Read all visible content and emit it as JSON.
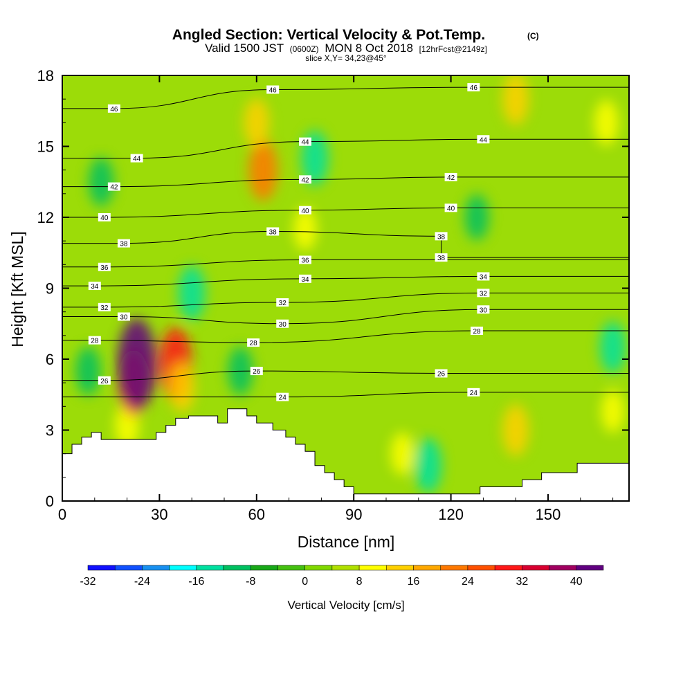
{
  "chart_data": {
    "type": "heatmap",
    "title": "Angled Section: Vertical Velocity & Pot.Temp.",
    "title_tag": "(C)",
    "subtitle": {
      "prefix": "Valid 1500 JST",
      "utc": "(0600Z)",
      "date": "MON 8 Oct 2018",
      "fcst": "[12hrFcst@2149z]"
    },
    "slice_label": "slice X,Y= 34,23@45°",
    "xlabel": "Distance [nm]",
    "ylabel": "Height [Kft MSL]",
    "xlim": [
      0,
      175
    ],
    "ylim": [
      0,
      18
    ],
    "xticks": [
      0,
      30,
      60,
      90,
      120,
      150
    ],
    "yticks": [
      0,
      3,
      6,
      9,
      12,
      15,
      18
    ],
    "colorbar": {
      "label": "Vertical Velocity [cm/s]",
      "levels": [
        -32,
        -28,
        -24,
        -20,
        -16,
        -12,
        -8,
        -4,
        0,
        4,
        8,
        12,
        16,
        20,
        24,
        28,
        32,
        36,
        40,
        44
      ],
      "tick_labels": [
        -32,
        -24,
        -16,
        -8,
        0,
        8,
        16,
        24,
        32,
        40
      ],
      "colors": [
        "#1010ff",
        "#1050ff",
        "#1890f0",
        "#00ffff",
        "#00e0a0",
        "#00c060",
        "#18a818",
        "#44c010",
        "#80d800",
        "#b0e000",
        "#ffff00",
        "#ffd000",
        "#ffa800",
        "#ff7800",
        "#ff5000",
        "#ff1818",
        "#d80030",
        "#a00060",
        "#600080"
      ]
    },
    "velocity_cells": [
      {
        "x": 20,
        "y": 3.2,
        "value": 10
      },
      {
        "x": 22,
        "y": 5.0,
        "value": 24
      },
      {
        "x": 23,
        "y": 5.8,
        "value": 40
      },
      {
        "x": 35,
        "y": 5.8,
        "value": 28
      },
      {
        "x": 37,
        "y": 4.8,
        "value": 12
      },
      {
        "x": 40,
        "y": 8.8,
        "value": -16
      },
      {
        "x": 8,
        "y": 5.5,
        "value": -12
      },
      {
        "x": 55,
        "y": 5.5,
        "value": -12
      },
      {
        "x": 62,
        "y": 14.0,
        "value": 20
      },
      {
        "x": 60,
        "y": 16.0,
        "value": 12
      },
      {
        "x": 78,
        "y": 14.5,
        "value": -16
      },
      {
        "x": 75,
        "y": 11.5,
        "value": 8
      },
      {
        "x": 140,
        "y": 3.0,
        "value": 14
      },
      {
        "x": 140,
        "y": 17.0,
        "value": 14
      },
      {
        "x": 168,
        "y": 16.0,
        "value": 10
      },
      {
        "x": 128,
        "y": 12.0,
        "value": -10
      },
      {
        "x": 12,
        "y": 13.5,
        "value": -12
      },
      {
        "x": 105,
        "y": 2.0,
        "value": 8
      },
      {
        "x": 170,
        "y": 3.8,
        "value": 8
      },
      {
        "x": 170,
        "y": 6.5,
        "value": -14
      },
      {
        "x": 113,
        "y": 1.5,
        "value": -16
      }
    ],
    "contour_series": {
      "name": "Pot.Temp.",
      "units": "C"
    },
    "contour_labels": [
      {
        "text": "46",
        "x": 16,
        "y": 16.6
      },
      {
        "text": "46",
        "x": 65,
        "y": 17.4
      },
      {
        "text": "46",
        "x": 127,
        "y": 17.5
      },
      {
        "text": "44",
        "x": 23,
        "y": 14.5
      },
      {
        "text": "44",
        "x": 75,
        "y": 15.2
      },
      {
        "text": "44",
        "x": 130,
        "y": 15.3
      },
      {
        "text": "42",
        "x": 16,
        "y": 13.3
      },
      {
        "text": "42",
        "x": 75,
        "y": 13.6
      },
      {
        "text": "42",
        "x": 120,
        "y": 13.7
      },
      {
        "text": "40",
        "x": 13,
        "y": 12.0
      },
      {
        "text": "40",
        "x": 75,
        "y": 12.3
      },
      {
        "text": "40",
        "x": 120,
        "y": 12.4
      },
      {
        "text": "38",
        "x": 19,
        "y": 10.9
      },
      {
        "text": "38",
        "x": 65,
        "y": 11.4
      },
      {
        "text": "38",
        "x": 117,
        "y": 11.2
      },
      {
        "text": "38",
        "x": 117,
        "y": 10.3
      },
      {
        "text": "36",
        "x": 13,
        "y": 9.9
      },
      {
        "text": "36",
        "x": 75,
        "y": 10.2
      },
      {
        "text": "34",
        "x": 10,
        "y": 9.1
      },
      {
        "text": "34",
        "x": 75,
        "y": 9.4
      },
      {
        "text": "34",
        "x": 130,
        "y": 9.5
      },
      {
        "text": "32",
        "x": 13,
        "y": 8.2
      },
      {
        "text": "32",
        "x": 68,
        "y": 8.4
      },
      {
        "text": "32",
        "x": 130,
        "y": 8.8
      },
      {
        "text": "30",
        "x": 19,
        "y": 7.8
      },
      {
        "text": "30",
        "x": 68,
        "y": 7.5
      },
      {
        "text": "30",
        "x": 130,
        "y": 8.1
      },
      {
        "text": "28",
        "x": 10,
        "y": 6.8
      },
      {
        "text": "28",
        "x": 59,
        "y": 6.7
      },
      {
        "text": "28",
        "x": 128,
        "y": 7.2
      },
      {
        "text": "26",
        "x": 13,
        "y": 5.1
      },
      {
        "text": "26",
        "x": 60,
        "y": 5.5
      },
      {
        "text": "26",
        "x": 117,
        "y": 5.4
      },
      {
        "text": "24",
        "x": 68,
        "y": 4.4
      },
      {
        "text": "24",
        "x": 127,
        "y": 4.6
      }
    ],
    "terrain": [
      [
        0,
        2.0
      ],
      [
        3,
        2.0
      ],
      [
        3,
        2.4
      ],
      [
        6,
        2.4
      ],
      [
        6,
        2.7
      ],
      [
        9,
        2.7
      ],
      [
        9,
        2.9
      ],
      [
        12,
        2.9
      ],
      [
        12,
        2.6
      ],
      [
        29,
        2.6
      ],
      [
        29,
        2.9
      ],
      [
        32,
        2.9
      ],
      [
        32,
        3.2
      ],
      [
        35,
        3.2
      ],
      [
        35,
        3.5
      ],
      [
        39,
        3.5
      ],
      [
        39,
        3.6
      ],
      [
        48,
        3.6
      ],
      [
        48,
        3.3
      ],
      [
        51,
        3.3
      ],
      [
        51,
        3.9
      ],
      [
        57,
        3.9
      ],
      [
        57,
        3.6
      ],
      [
        60,
        3.6
      ],
      [
        60,
        3.3
      ],
      [
        65,
        3.3
      ],
      [
        65,
        3.0
      ],
      [
        69,
        3.0
      ],
      [
        69,
        2.7
      ],
      [
        72,
        2.7
      ],
      [
        72,
        2.4
      ],
      [
        75,
        2.4
      ],
      [
        75,
        2.1
      ],
      [
        78,
        2.1
      ],
      [
        78,
        1.5
      ],
      [
        81,
        1.5
      ],
      [
        81,
        1.2
      ],
      [
        84,
        1.2
      ],
      [
        84,
        0.9
      ],
      [
        87,
        0.9
      ],
      [
        87,
        0.6
      ],
      [
        90,
        0.6
      ],
      [
        90,
        0.3
      ],
      [
        129,
        0.3
      ],
      [
        129,
        0.6
      ],
      [
        142,
        0.6
      ],
      [
        142,
        0.9
      ],
      [
        148,
        0.9
      ],
      [
        148,
        1.2
      ],
      [
        159,
        1.2
      ],
      [
        159,
        1.6
      ],
      [
        175,
        1.6
      ]
    ]
  }
}
